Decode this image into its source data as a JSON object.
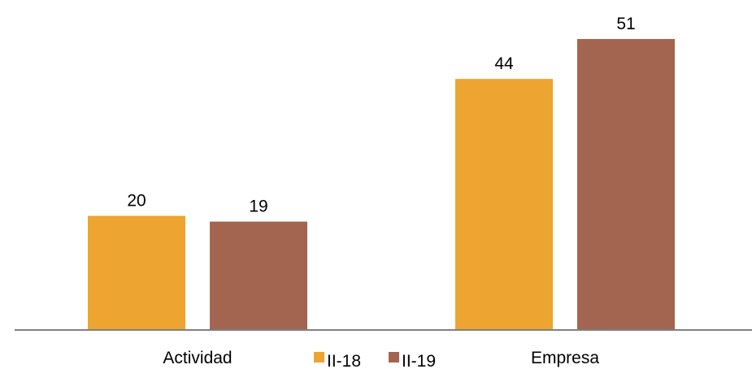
{
  "chart_data": {
    "type": "bar",
    "categories": [
      "Actividad",
      "Empresa"
    ],
    "series": [
      {
        "name": "II-18",
        "values": [
          20,
          44
        ],
        "color": "#EDA431"
      },
      {
        "name": "II-19",
        "values": [
          19,
          51
        ],
        "color": "#A3654F"
      }
    ],
    "ylim": [
      0,
      57
    ],
    "grid": false,
    "axis_color": "#808080",
    "legend_position": "bottom"
  }
}
